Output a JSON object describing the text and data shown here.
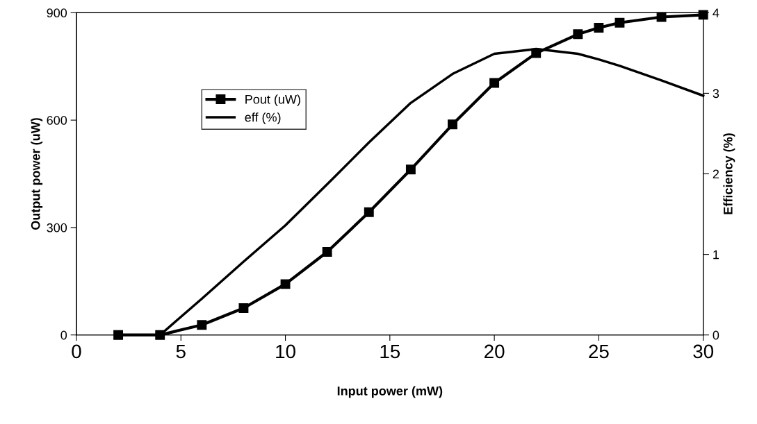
{
  "chart_data": {
    "type": "line",
    "xlabel": "Input power (mW)",
    "ylabel": "Output power (uW)",
    "y2label": "Efficiency (%)",
    "xlim": [
      0,
      30
    ],
    "xticks": [
      0,
      5,
      10,
      15,
      20,
      25,
      30
    ],
    "ylim": [
      0,
      900
    ],
    "yticks": [
      0,
      300,
      600,
      900
    ],
    "y2lim": [
      0,
      4
    ],
    "y2ticks": [
      0,
      1,
      2,
      3,
      4
    ],
    "grid": false,
    "legend": "left",
    "series": [
      {
        "name": "Pout (uW)",
        "color": "#000000",
        "marker": "square",
        "x": [
          2,
          4,
          6,
          8,
          10,
          12,
          14,
          16,
          18,
          20,
          22,
          24,
          25,
          26,
          28,
          30
        ],
        "values": [
          0,
          0,
          28,
          75,
          142,
          232,
          343,
          462,
          588,
          704,
          787,
          840,
          858,
          872,
          888,
          894
        ]
      },
      {
        "name": "eff (%)",
        "color": "#000000",
        "marker": "none",
        "axis": "y2",
        "x": [
          4,
          6,
          8,
          10,
          12,
          14,
          16,
          18,
          20,
          22,
          24,
          25,
          26,
          28,
          30
        ],
        "values": [
          0,
          0.45,
          0.91,
          1.36,
          1.87,
          2.39,
          2.88,
          3.24,
          3.49,
          3.55,
          3.49,
          3.42,
          3.34,
          3.16,
          2.97
        ]
      }
    ]
  }
}
